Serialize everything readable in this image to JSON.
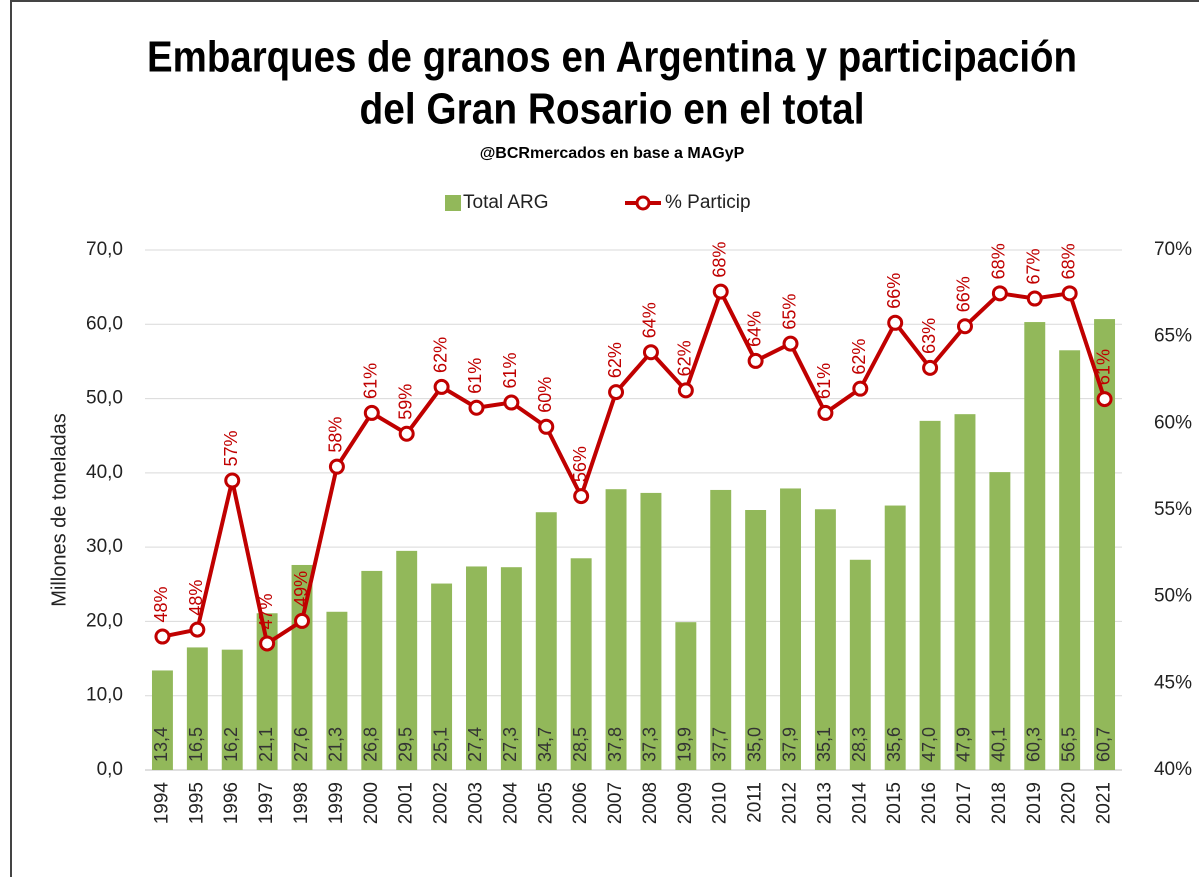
{
  "chart_data": {
    "type": "bar-line",
    "title": [
      "Embarques de granos en Argentina y participación",
      "del Gran Rosario en el total"
    ],
    "subtitle": "@BCRmercados en base a MAGyP",
    "ylabel": "Millones de toneladas",
    "categories": [
      "1994",
      "1995",
      "1996",
      "1997",
      "1998",
      "1999",
      "2000",
      "2001",
      "2002",
      "2003",
      "2004",
      "2005",
      "2006",
      "2007",
      "2008",
      "2009",
      "2010",
      "2011",
      "2012",
      "2013",
      "2014",
      "2015",
      "2016",
      "2017",
      "2018",
      "2019",
      "2020",
      "2021"
    ],
    "series": [
      {
        "name": "Total ARG",
        "type": "bar",
        "color": "#92b85a",
        "values": [
          13.4,
          16.5,
          16.2,
          21.1,
          27.6,
          21.3,
          26.8,
          29.5,
          25.1,
          27.4,
          27.3,
          34.7,
          28.5,
          37.8,
          37.3,
          19.9,
          37.7,
          35.0,
          37.9,
          35.1,
          28.3,
          35.6,
          47.0,
          47.9,
          40.1,
          60.3,
          56.5,
          60.7
        ],
        "value_labels": [
          "13,4",
          "16,5",
          "16,2",
          "21,1",
          "27,6",
          "21,3",
          "26,8",
          "29,5",
          "25,1",
          "27,4",
          "27,3",
          "34,7",
          "28,5",
          "37,8",
          "37,3",
          "19,9",
          "37,7",
          "35,0",
          "37,9",
          "35,1",
          "28,3",
          "35,6",
          "47,0",
          "47,9",
          "40,1",
          "60,3",
          "56,5",
          "60,7"
        ]
      },
      {
        "name": "% Particip",
        "type": "line",
        "axis": "y2",
        "color": "#c00000",
        "values": [
          47.7,
          48.1,
          56.7,
          47.3,
          48.6,
          57.5,
          60.6,
          59.4,
          62.1,
          60.9,
          61.2,
          59.8,
          55.8,
          61.8,
          64.1,
          61.9,
          67.6,
          63.6,
          64.6,
          60.6,
          62.0,
          65.8,
          63.2,
          65.6,
          67.5,
          67.2,
          67.5,
          61.4
        ],
        "value_labels": [
          "48%",
          "48%",
          "57%",
          "47%",
          "49%",
          "58%",
          "61%",
          "59%",
          "62%",
          "61%",
          "61%",
          "60%",
          "56%",
          "62%",
          "64%",
          "62%",
          "68%",
          "64%",
          "65%",
          "61%",
          "62%",
          "66%",
          "63%",
          "66%",
          "68%",
          "67%",
          "68%",
          "61%"
        ]
      }
    ],
    "ylim": [
      0,
      70
    ],
    "yticks": [
      {
        "value": 0,
        "label": "0,0"
      },
      {
        "value": 10,
        "label": "10,0"
      },
      {
        "value": 20,
        "label": "20,0"
      },
      {
        "value": 30,
        "label": "30,0"
      },
      {
        "value": 40,
        "label": "40,0"
      },
      {
        "value": 50,
        "label": "50,0"
      },
      {
        "value": 60,
        "label": "60,0"
      },
      {
        "value": 70,
        "label": "70,0"
      }
    ],
    "y2lim": [
      40,
      70
    ],
    "y2ticks": [
      {
        "value": 40,
        "label": "40%"
      },
      {
        "value": 45,
        "label": "45%"
      },
      {
        "value": 50,
        "label": "50%"
      },
      {
        "value": 55,
        "label": "55%"
      },
      {
        "value": 60,
        "label": "60%"
      },
      {
        "value": 65,
        "label": "65%"
      },
      {
        "value": 70,
        "label": "70%"
      }
    ],
    "grid": true,
    "legend": "top"
  }
}
